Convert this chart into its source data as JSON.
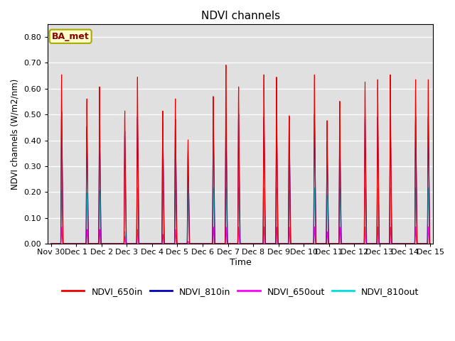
{
  "title": "NDVI channels",
  "ylabel": "NDVI channels (W/m2/nm)",
  "xlabel": "Time",
  "annotation": "BA_met",
  "ylim": [
    0.0,
    0.85
  ],
  "yticks": [
    0.0,
    0.1,
    0.2,
    0.3,
    0.4,
    0.5,
    0.6,
    0.7,
    0.8
  ],
  "bg_color": "#e0e0e0",
  "fig_color": "#ffffff",
  "line_colors": {
    "NDVI_650in": "#ee0000",
    "NDVI_810in": "#0000bb",
    "NDVI_650out": "#ff00ff",
    "NDVI_810out": "#00dddd"
  },
  "spike_times": [
    0.42,
    0.92,
    1.42,
    1.92,
    2.42,
    2.92,
    3.42,
    3.92,
    4.42,
    4.92,
    5.42,
    5.92,
    6.42,
    6.92,
    7.42,
    7.92,
    8.42,
    8.92,
    9.42,
    9.92,
    10.42,
    10.92,
    11.42,
    11.92,
    12.42,
    12.92,
    13.42,
    13.92,
    14.42,
    14.92
  ],
  "spike_peaks_650in": [
    0.7,
    0.0,
    0.6,
    0.65,
    0.0,
    0.55,
    0.69,
    0.0,
    0.55,
    0.6,
    0.43,
    0.0,
    0.61,
    0.74,
    0.65,
    0.0,
    0.7,
    0.69,
    0.53,
    0.0,
    0.7,
    0.51,
    0.59,
    0.0,
    0.67,
    0.68,
    0.7,
    0.0,
    0.68,
    0.68
  ],
  "spike_peaks_810in": [
    0.54,
    0.0,
    0.48,
    0.5,
    0.0,
    0.46,
    0.52,
    0.0,
    0.5,
    0.51,
    0.38,
    0.0,
    0.52,
    0.52,
    0.53,
    0.0,
    0.52,
    0.52,
    0.52,
    0.0,
    0.53,
    0.42,
    0.46,
    0.0,
    0.52,
    0.52,
    0.52,
    0.0,
    0.52,
    0.52
  ],
  "spike_peaks_650out": [
    0.07,
    0.0,
    0.06,
    0.06,
    0.0,
    0.03,
    0.06,
    0.0,
    0.04,
    0.06,
    0.01,
    0.0,
    0.07,
    0.07,
    0.07,
    0.0,
    0.07,
    0.07,
    0.07,
    0.0,
    0.07,
    0.05,
    0.07,
    0.0,
    0.07,
    0.07,
    0.07,
    0.0,
    0.07,
    0.07
  ],
  "spike_peaks_810out": [
    0.22,
    0.0,
    0.21,
    0.22,
    0.0,
    0.05,
    0.23,
    0.0,
    0.22,
    0.22,
    0.22,
    0.0,
    0.23,
    0.23,
    0.23,
    0.0,
    0.23,
    0.23,
    0.22,
    0.0,
    0.23,
    0.2,
    0.23,
    0.0,
    0.23,
    0.23,
    0.23,
    0.0,
    0.23,
    0.23
  ]
}
